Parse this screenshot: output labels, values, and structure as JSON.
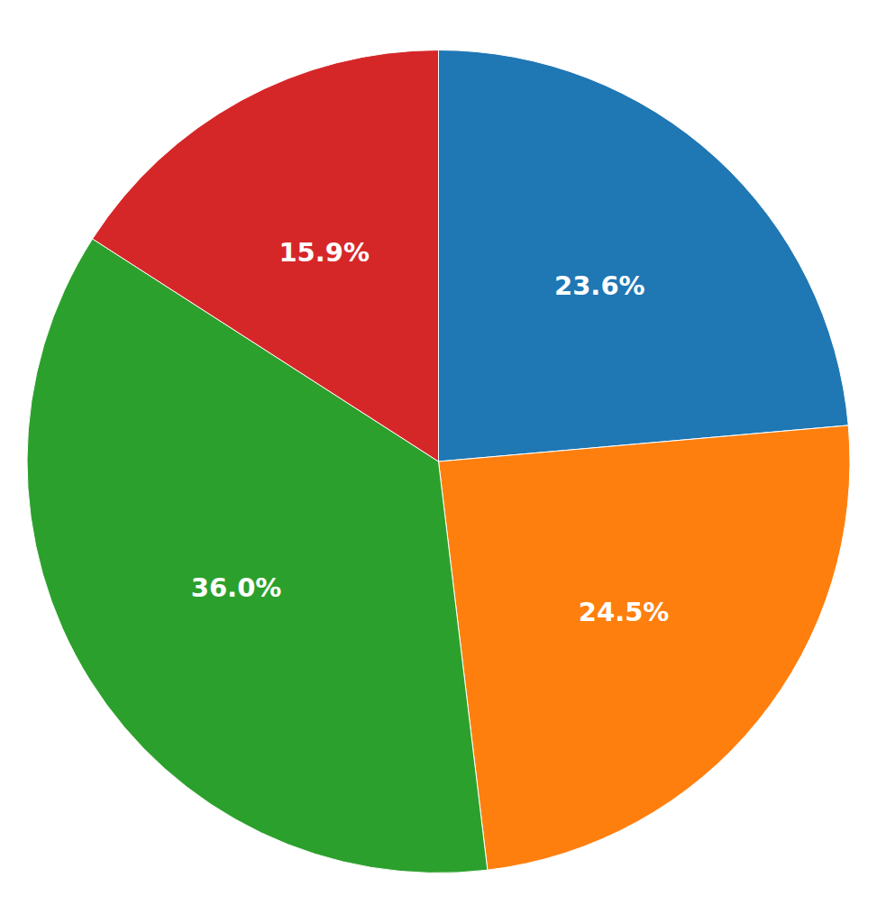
{
  "chart_data": {
    "type": "pie",
    "values": [
      23.6,
      24.5,
      36.0,
      15.9
    ],
    "value_labels": [
      "23.6%",
      "24.5%",
      "36.0%",
      "15.9%"
    ],
    "data_labels": true
  }
}
